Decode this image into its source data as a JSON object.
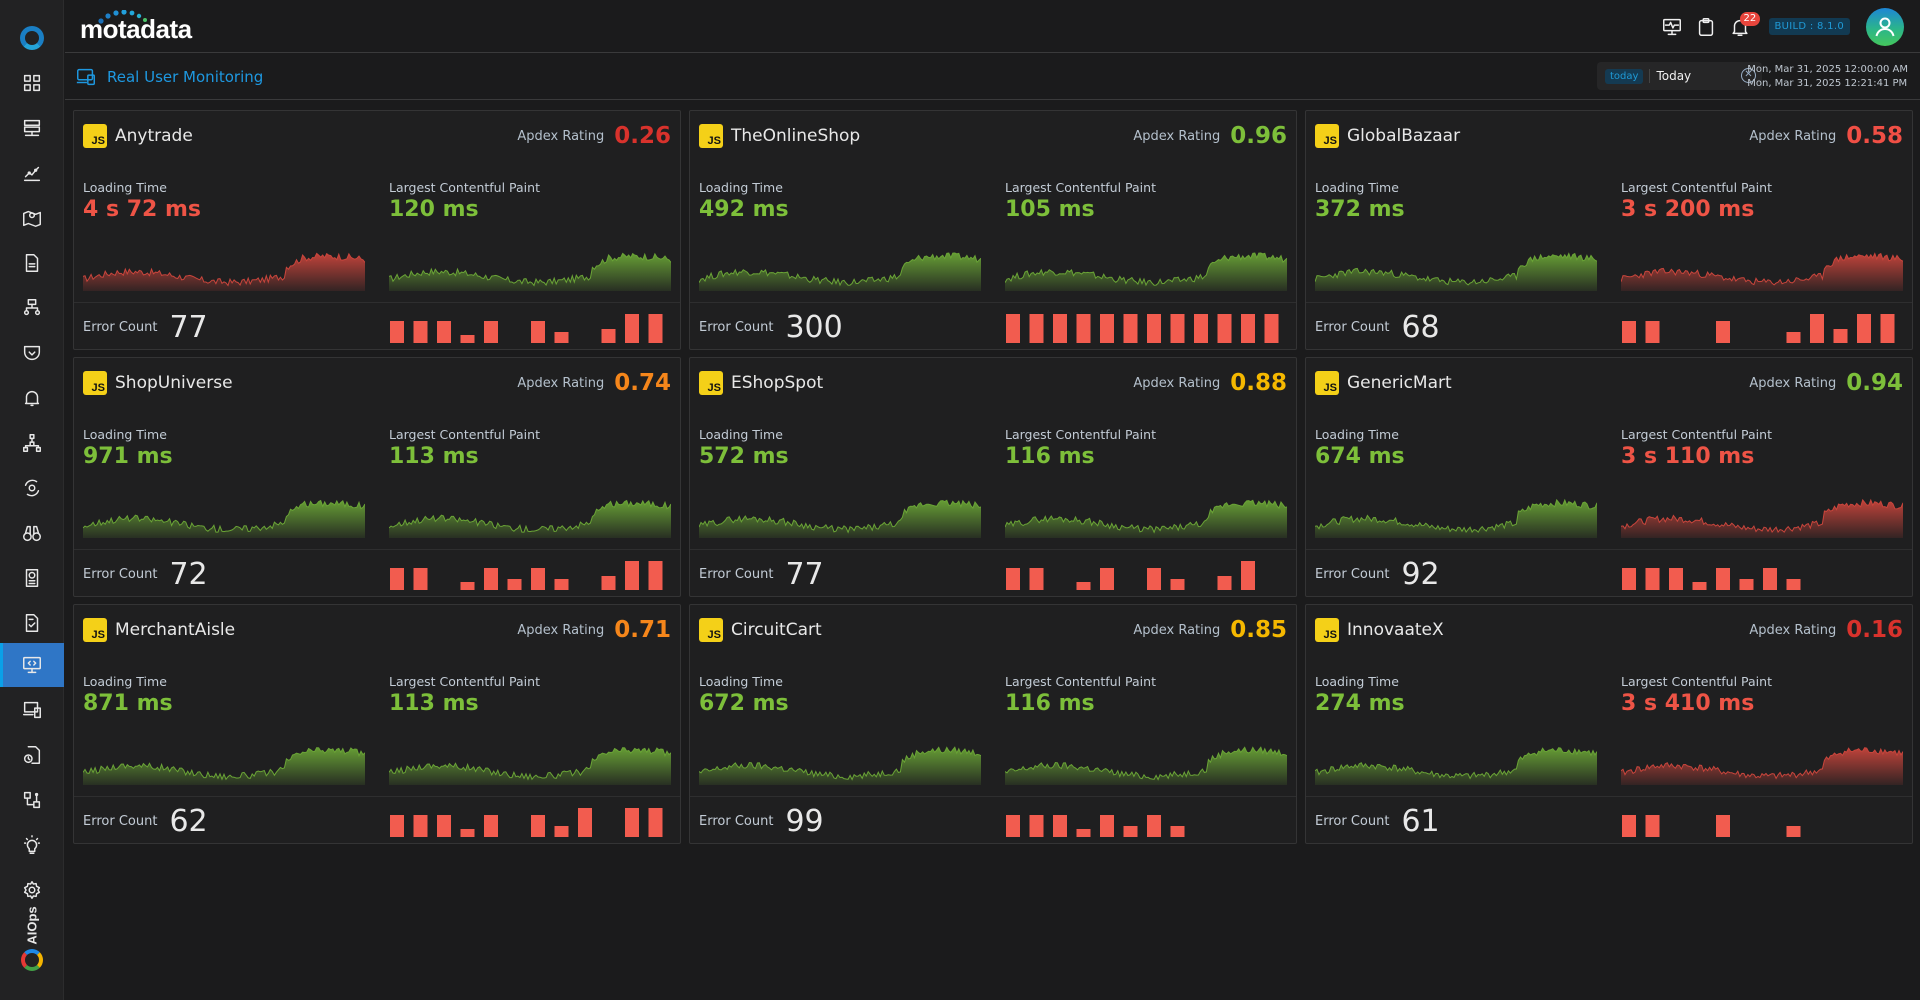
{
  "app": {
    "logo_text": "motadata",
    "build_label": "BUILD : 8.1.0",
    "notification_count": "22",
    "page_title": "Real User Monitoring"
  },
  "sidebar": {
    "items": [
      {
        "name": "dashboard",
        "icon": "grid-icon"
      },
      {
        "name": "inventory",
        "icon": "server-icon"
      },
      {
        "name": "metric-explorer",
        "icon": "chart-line-icon"
      },
      {
        "name": "topology-map",
        "icon": "map-pin-icon"
      },
      {
        "name": "reports",
        "icon": "document-icon"
      },
      {
        "name": "network",
        "icon": "network-icon"
      },
      {
        "name": "policies",
        "icon": "shield-check-icon"
      },
      {
        "name": "alerts",
        "icon": "bell-icon"
      },
      {
        "name": "hierarchy",
        "icon": "hierarchy-icon"
      },
      {
        "name": "automation",
        "icon": "gear-refresh-icon"
      },
      {
        "name": "explorer",
        "icon": "binoculars-icon"
      },
      {
        "name": "audit",
        "icon": "report-chart-icon"
      },
      {
        "name": "compliance",
        "icon": "document-check-icon"
      },
      {
        "name": "real-user-monitoring",
        "icon": "monitor-code-icon",
        "active": true
      },
      {
        "name": "devices",
        "icon": "devices-icon"
      },
      {
        "name": "log-analytics",
        "icon": "file-clock-icon"
      },
      {
        "name": "flow",
        "icon": "flow-icon"
      },
      {
        "name": "insights",
        "icon": "lightbulb-icon"
      },
      {
        "name": "settings",
        "icon": "gear-icon"
      }
    ],
    "aiops_label": "AIOps"
  },
  "time_filter": {
    "tag": "today",
    "value": "Today",
    "range_start": "Mon, Mar 31, 2025 12:00:00 AM",
    "range_end": "Mon, Mar 31, 2025 12:21:41 PM"
  },
  "labels": {
    "apdex": "Apdex Rating",
    "loading_time": "Loading Time",
    "lcp": "Largest Contentful Paint",
    "error_count": "Error Count",
    "js_badge": "JS"
  },
  "colors": {
    "good": "#7dbf3a",
    "bad": "#ee5446",
    "apdex_poor": "#d8322c",
    "apdex_fair": "#f04f45",
    "apdex_ok": "#f5861b",
    "apdex_goodish": "#f5b800",
    "apdex_good": "#7dbf3a",
    "error_bar": "#f25c4f"
  },
  "apps": [
    {
      "name": "Anytrade",
      "apdex": "0.26",
      "apdex_color": "#d8322c",
      "loading_time": "4 s 72 ms",
      "loading_status": "bad",
      "lcp": "120 ms",
      "lcp_status": "good",
      "error_count": "77",
      "error_bars": [
        22,
        22,
        22,
        8,
        22,
        0,
        22,
        11,
        0,
        14,
        29,
        29
      ]
    },
    {
      "name": "TheOnlineShop",
      "apdex": "0.96",
      "apdex_color": "#7dbf3a",
      "loading_time": "492 ms",
      "loading_status": "good",
      "lcp": "105 ms",
      "lcp_status": "good",
      "error_count": "300",
      "error_bars": [
        29,
        29,
        29,
        29,
        29,
        29,
        29,
        29,
        29,
        29,
        29,
        29
      ]
    },
    {
      "name": "GlobalBazaar",
      "apdex": "0.58",
      "apdex_color": "#f04f45",
      "loading_time": "372 ms",
      "loading_status": "good",
      "lcp": "3 s 200 ms",
      "lcp_status": "bad",
      "error_count": "68",
      "error_bars": [
        22,
        22,
        0,
        0,
        22,
        0,
        0,
        11,
        29,
        14,
        29,
        29
      ]
    },
    {
      "name": "ShopUniverse",
      "apdex": "0.74",
      "apdex_color": "#f5861b",
      "loading_time": "971 ms",
      "loading_status": "good",
      "lcp": "113 ms",
      "lcp_status": "good",
      "error_count": "72",
      "error_bars": [
        22,
        22,
        0,
        8,
        22,
        11,
        22,
        11,
        0,
        14,
        29,
        29
      ]
    },
    {
      "name": "EShopSpot",
      "apdex": "0.88",
      "apdex_color": "#f5b800",
      "loading_time": "572 ms",
      "loading_status": "good",
      "lcp": "116 ms",
      "lcp_status": "good",
      "error_count": "77",
      "error_bars": [
        22,
        22,
        0,
        8,
        22,
        0,
        22,
        11,
        0,
        14,
        29,
        0
      ]
    },
    {
      "name": "GenericMart",
      "apdex": "0.94",
      "apdex_color": "#7dbf3a",
      "loading_time": "674 ms",
      "loading_status": "good",
      "lcp": "3 s 110 ms",
      "lcp_status": "bad",
      "error_count": "92",
      "error_bars": [
        22,
        22,
        22,
        8,
        22,
        11,
        22,
        11,
        0,
        0,
        0,
        0
      ]
    },
    {
      "name": "MerchantAisle",
      "apdex": "0.71",
      "apdex_color": "#f5861b",
      "loading_time": "871 ms",
      "loading_status": "good",
      "lcp": "113 ms",
      "lcp_status": "good",
      "error_count": "62",
      "error_bars": [
        22,
        22,
        22,
        8,
        22,
        0,
        22,
        11,
        29,
        0,
        29,
        29
      ]
    },
    {
      "name": "CircuitCart",
      "apdex": "0.85",
      "apdex_color": "#f5b800",
      "loading_time": "672 ms",
      "loading_status": "good",
      "lcp": "116 ms",
      "lcp_status": "good",
      "error_count": "99",
      "error_bars": [
        22,
        22,
        22,
        8,
        22,
        11,
        22,
        11,
        0,
        0,
        0,
        0
      ]
    },
    {
      "name": "InnovaateX",
      "apdex": "0.16",
      "apdex_color": "#d8322c",
      "loading_time": "274 ms",
      "loading_status": "good",
      "lcp": "3 s 410 ms",
      "lcp_status": "bad",
      "error_count": "61",
      "error_bars": [
        22,
        22,
        0,
        0,
        22,
        0,
        0,
        11,
        0,
        0,
        0,
        0
      ]
    }
  ]
}
